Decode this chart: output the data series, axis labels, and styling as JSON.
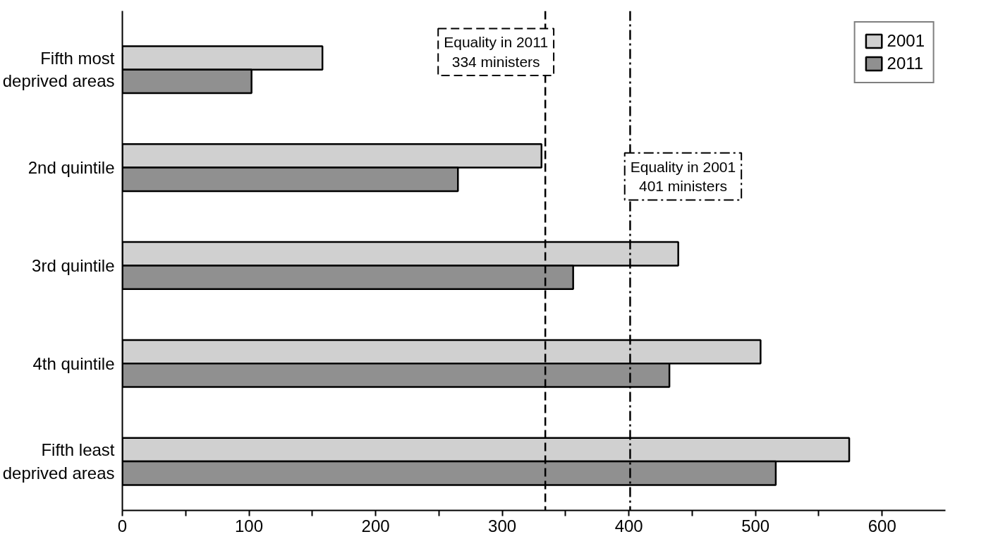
{
  "chart_data": {
    "type": "bar",
    "orientation": "horizontal",
    "categories": [
      "Fifth most\ndeprived areas",
      "2nd quintile",
      "3rd quintile",
      "4th quintile",
      "Fifth least\ndeprived areas"
    ],
    "series": [
      {
        "name": "2001",
        "color": "#d0d0d0",
        "values": [
          158,
          331,
          439,
          504,
          574
        ]
      },
      {
        "name": "2011",
        "color": "#909090",
        "values": [
          102,
          265,
          356,
          432,
          516
        ]
      }
    ],
    "xlim": [
      0,
      650
    ],
    "xticks": [
      0,
      {
        "value": 50,
        "label": null
      },
      100,
      {
        "value": 150,
        "label": null
      },
      200,
      {
        "value": 250,
        "label": null
      },
      300,
      {
        "value": 350,
        "label": null
      },
      400,
      {
        "value": 450,
        "label": null
      },
      500,
      {
        "value": 550,
        "label": null
      },
      600
    ],
    "ref_lines": [
      {
        "axis": "x",
        "value": 334,
        "label": "Equality in 2011\n334 ministers",
        "line_style": "dashed",
        "color": "#000000"
      },
      {
        "axis": "x",
        "value": 401,
        "label": "Equality in 2001\n401 ministers",
        "line_style": "dashdot",
        "color": "#000000"
      }
    ],
    "grid": false,
    "legend": "top right"
  }
}
